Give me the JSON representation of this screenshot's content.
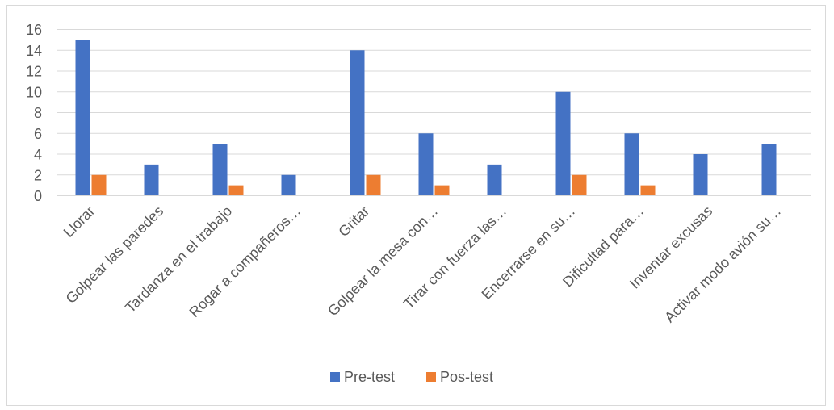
{
  "chart_data": {
    "type": "bar",
    "categories": [
      "Llorar",
      "Golpear las paredes",
      "Tardanza en el trabajo",
      "Rogar a compañeros…",
      "Gritar",
      "Golpear la mesa con…",
      "Tirar con fuerza las…",
      "Encerrarse en su…",
      "Dificultad para…",
      "Inventar excusas",
      "Activar modo avión su…"
    ],
    "series": [
      {
        "name": "Pre-test",
        "values": [
          15,
          3,
          5,
          2,
          14,
          6,
          3,
          10,
          6,
          4,
          5
        ],
        "color": "#4472c4"
      },
      {
        "name": "Pos-test",
        "values": [
          2,
          0,
          1,
          0,
          2,
          1,
          0,
          2,
          1,
          0,
          0
        ],
        "color": "#ed7d31"
      }
    ],
    "yticks": [
      "0",
      "2",
      "4",
      "6",
      "8",
      "10",
      "12",
      "14",
      "16"
    ],
    "ylim": [
      0,
      16
    ],
    "grid": true,
    "legend": "bottom",
    "title": "",
    "xlabel": "",
    "ylabel": ""
  }
}
